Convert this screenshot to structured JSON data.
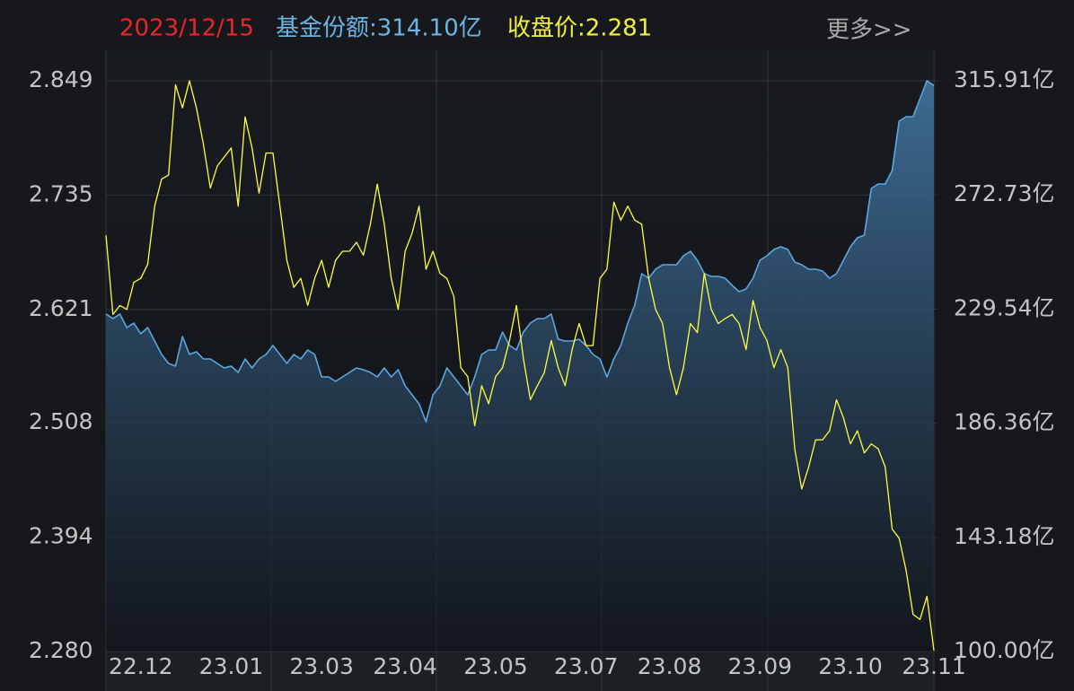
{
  "header": {
    "date": "2023/12/15",
    "share": "基金份额:314.10亿",
    "price": "收盘价:2.281",
    "more": "更多>>"
  },
  "chart_data": {
    "type": "line",
    "categories": [
      null,
      null,
      null,
      null,
      null,
      "22.12",
      null,
      null,
      null,
      null,
      null,
      null,
      null,
      null,
      null,
      null,
      null,
      null,
      "23.01",
      null,
      null,
      null,
      null,
      null,
      null,
      null,
      null,
      null,
      null,
      null,
      null,
      "23.03",
      null,
      null,
      null,
      null,
      null,
      null,
      null,
      null,
      null,
      null,
      null,
      "23.04",
      null,
      null,
      null,
      null,
      null,
      null,
      null,
      null,
      null,
      null,
      null,
      null,
      "23.05",
      null,
      null,
      null,
      null,
      null,
      null,
      null,
      null,
      null,
      null,
      null,
      null,
      "23.07",
      null,
      null,
      null,
      null,
      null,
      null,
      null,
      null,
      null,
      null,
      null,
      "23.08",
      null,
      null,
      null,
      null,
      null,
      null,
      null,
      null,
      null,
      null,
      null,
      null,
      "23.09",
      null,
      null,
      null,
      null,
      null,
      null,
      null,
      null,
      null,
      null,
      null,
      null,
      "23.10",
      null,
      null,
      null,
      null,
      null,
      null,
      null,
      null,
      null,
      null,
      null,
      "23.11"
    ],
    "series": [
      {
        "color": "#ffff40",
        "axis": "y",
        "values": [
          2.695,
          2.616,
          2.625,
          2.621,
          2.648,
          2.652,
          2.666,
          2.724,
          2.751,
          2.755,
          2.845,
          2.822,
          2.849,
          2.822,
          2.786,
          2.742,
          2.764,
          2.773,
          2.782,
          2.724,
          2.813,
          2.782,
          2.737,
          2.777,
          2.777,
          2.724,
          2.67,
          2.643,
          2.652,
          2.625,
          2.652,
          2.67,
          2.643,
          2.67,
          2.679,
          2.679,
          2.688,
          2.675,
          2.706,
          2.746,
          2.706,
          2.652,
          2.621,
          2.679,
          2.697,
          2.724,
          2.661,
          2.679,
          2.657,
          2.652,
          2.634,
          2.563,
          2.554,
          2.505,
          2.545,
          2.527,
          2.554,
          2.563,
          2.59,
          2.625,
          2.572,
          2.531,
          2.545,
          2.558,
          2.59,
          2.563,
          2.545,
          2.581,
          2.607,
          2.585,
          2.585,
          2.652,
          2.661,
          2.728,
          2.71,
          2.724,
          2.71,
          2.706,
          2.652,
          2.621,
          2.607,
          2.563,
          2.536,
          2.563,
          2.607,
          2.598,
          2.657,
          2.621,
          2.607,
          2.612,
          2.616,
          2.607,
          2.581,
          2.63,
          2.603,
          2.59,
          2.563,
          2.581,
          2.563,
          2.482,
          2.442,
          2.464,
          2.491,
          2.491,
          2.5,
          2.531,
          2.513,
          2.487,
          2.5,
          2.478,
          2.487,
          2.482,
          2.464,
          2.402,
          2.393,
          2.361,
          2.317,
          2.312,
          2.335,
          2.281
        ]
      },
      {
        "color": "#5aa8e0",
        "axis": "y2",
        "values": [
          227.65,
          225.95,
          227.65,
          222.55,
          224.25,
          220.18,
          222.55,
          217.46,
          212.37,
          208.97,
          207.96,
          219.16,
          212.37,
          213.39,
          210.67,
          210.67,
          208.97,
          207.28,
          207.96,
          205.58,
          210.67,
          207.28,
          210.67,
          212.37,
          215.76,
          212.37,
          208.97,
          212.37,
          210.67,
          214.07,
          212.37,
          203.88,
          203.88,
          202.18,
          203.88,
          205.58,
          207.28,
          206.6,
          205.58,
          203.88,
          207.28,
          203.88,
          206.6,
          200.49,
          197.09,
          193.7,
          186.91,
          197.09,
          200.49,
          207.28,
          203.88,
          200.49,
          197.09,
          203.88,
          212.37,
          214.07,
          214.07,
          220.86,
          215.76,
          214.07,
          220.86,
          224.25,
          225.95,
          225.95,
          227.65,
          218.14,
          217.46,
          217.46,
          218.14,
          215.76,
          212.37,
          210.67,
          203.88,
          210.67,
          215.76,
          224.25,
          231.04,
          242.92,
          241.22,
          244.62,
          246.32,
          246.32,
          246.32,
          249.71,
          251.41,
          248.01,
          242.92,
          241.9,
          241.9,
          241.22,
          238.51,
          236.13,
          237.15,
          241.22,
          248.01,
          249.71,
          252.09,
          253.11,
          252.09,
          247.34,
          246.32,
          244.62,
          244.62,
          243.94,
          241.22,
          242.92,
          248.01,
          253.11,
          256.5,
          257.52,
          275.17,
          276.87,
          276.87,
          281.96,
          300.63,
          302.33,
          302.33,
          309.12,
          315.91,
          314.1
        ]
      }
    ],
    "ylim": [
      2.28,
      2.849
    ],
    "yticks": [
      {
        "value": 2.28,
        "label": "2.280"
      },
      2.394,
      2.508,
      2.621,
      2.735,
      2.849
    ],
    "y2lim": [
      100,
      315.91
    ],
    "y2ticks": [
      {
        "value": 100,
        "label": "100.00亿"
      },
      {
        "value": 143.18,
        "label": "143.18亿"
      },
      {
        "value": 186.36,
        "label": "186.36亿"
      },
      {
        "value": 229.54,
        "label": "229.54亿"
      },
      {
        "value": 272.73,
        "label": "272.73亿"
      },
      {
        "value": 315.91,
        "label": "315.91亿"
      }
    ],
    "grid": true
  }
}
